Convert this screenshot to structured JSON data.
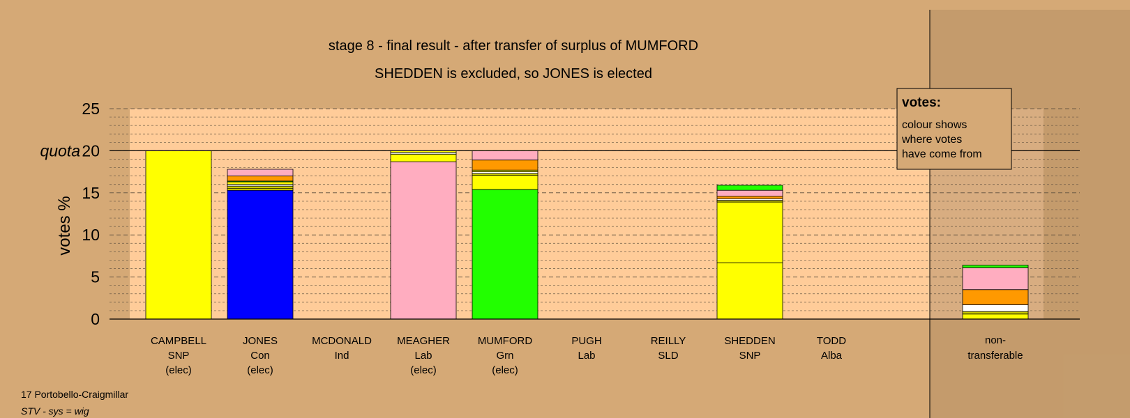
{
  "chart_data": {
    "type": "bar",
    "title": "stage 8 - final result - after transfer of surplus of MUMFORD",
    "subtitle": "SHEDDEN is excluded, so JONES is elected",
    "ylabel": "votes %",
    "ylim": [
      0,
      25
    ],
    "yticks": [
      "0",
      "5",
      "10",
      "15",
      "20",
      "25"
    ],
    "quota_label": "quota",
    "quota_value": 20,
    "grid": true,
    "legend": {
      "position": "top-right",
      "title": "votes:",
      "lines": [
        "colour shows",
        "where votes",
        "have come from"
      ]
    },
    "colors": {
      "SNP": "#ffff00",
      "Con": "#0000ff",
      "Lab": "#ffadc0",
      "Grn": "#22ff00",
      "LD": "#ff9900",
      "Ind": "#ffffff",
      "Alba": "#c8c800",
      "other": "#ff8c40"
    },
    "candidates": [
      {
        "name": "CAMPBELL",
        "party": "SNP",
        "status": "(elec)",
        "total": 20.0,
        "segments": [
          {
            "color": "#ffff00",
            "value": 20.0
          }
        ]
      },
      {
        "name": "JONES",
        "party": "Con",
        "status": "(elec)",
        "total": 17.8,
        "segments": [
          {
            "color": "#0000ff",
            "value": 15.3
          },
          {
            "color": "#ffff00",
            "value": 0.2
          },
          {
            "color": "#c8c800",
            "value": 0.3
          },
          {
            "color": "#ffffff",
            "value": 0.2
          },
          {
            "color": "#ffff00",
            "value": 0.3
          },
          {
            "color": "#22ff00",
            "value": 0.1
          },
          {
            "color": "#ff9900",
            "value": 0.6
          },
          {
            "color": "#ffadc0",
            "value": 0.8
          }
        ]
      },
      {
        "name": "MCDONALD",
        "party": "Ind",
        "status": "",
        "total": 0,
        "segments": []
      },
      {
        "name": "MEAGHER",
        "party": "Lab",
        "status": "(elec)",
        "total": 20.0,
        "segments": [
          {
            "color": "#ffadc0",
            "value": 18.7
          },
          {
            "color": "#ffff00",
            "value": 0.9
          },
          {
            "color": "#ffffff",
            "value": 0.2
          },
          {
            "color": "#ffff00",
            "value": 0.2
          }
        ]
      },
      {
        "name": "MUMFORD",
        "party": "Grn",
        "status": "(elec)",
        "total": 20.0,
        "segments": [
          {
            "color": "#22ff00",
            "value": 15.4
          },
          {
            "color": "#ffff00",
            "value": 1.7
          },
          {
            "color": "#c8c800",
            "value": 0.2
          },
          {
            "color": "#ffffff",
            "value": 0.2
          },
          {
            "color": "#ffff00",
            "value": 0.2
          },
          {
            "color": "#ff9900",
            "value": 1.2
          },
          {
            "color": "#ffadc0",
            "value": 1.1
          }
        ]
      },
      {
        "name": "PUGH",
        "party": "Lab",
        "status": "",
        "total": 0,
        "segments": []
      },
      {
        "name": "REILLY",
        "party": "SLD",
        "status": "",
        "total": 0,
        "segments": []
      },
      {
        "name": "SHEDDEN",
        "party": "SNP",
        "status": "",
        "total": 15.9,
        "segments": [
          {
            "color": "#ffff00",
            "value": 6.7
          },
          {
            "color": "#ffff00",
            "value": 7.2
          },
          {
            "color": "#c8c800",
            "value": 0.2
          },
          {
            "color": "#ffffff",
            "value": 0.2
          },
          {
            "color": "#ff9900",
            "value": 0.3
          },
          {
            "color": "#ffadc0",
            "value": 0.7
          },
          {
            "color": "#22ff00",
            "value": 0.6
          }
        ]
      },
      {
        "name": "TODD",
        "party": "Alba",
        "status": "",
        "total": 0,
        "segments": []
      }
    ],
    "nontransferable": {
      "label_line1": "non-",
      "label_line2": "transferable",
      "total": 6.4,
      "segments": [
        {
          "color": "#ffff00",
          "value": 0.6
        },
        {
          "color": "#c8c800",
          "value": 0.3
        },
        {
          "color": "#ffffff",
          "value": 0.8
        },
        {
          "color": "#ff9900",
          "value": 1.8
        },
        {
          "color": "#ffadc0",
          "value": 2.6
        },
        {
          "color": "#22ff00",
          "value": 0.3
        }
      ]
    }
  },
  "footer": {
    "place": "17 Portobello-Craigmillar",
    "system": "STV - sys = wig"
  }
}
